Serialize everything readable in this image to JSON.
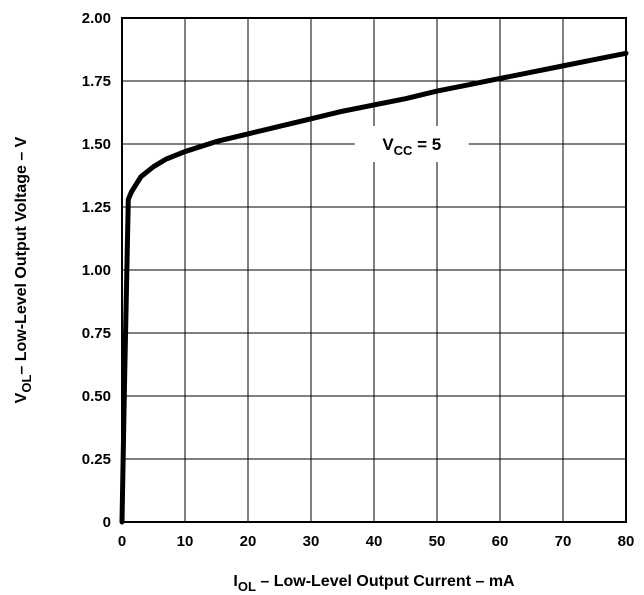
{
  "chart_data": {
    "type": "line",
    "title": "",
    "xlabel": {
      "main": "I",
      "sub": "OL",
      "rest": " – Low-Level Output Current – mA"
    },
    "ylabel": {
      "main": "V",
      "sub": "OL",
      "rest": "– Low-Level Output Voltage – V"
    },
    "xlim": [
      0,
      80
    ],
    "ylim": [
      0,
      2.0
    ],
    "x_ticks": [
      0,
      10,
      20,
      30,
      40,
      50,
      60,
      70,
      80
    ],
    "x_tick_labels": [
      "0",
      "10",
      "20",
      "30",
      "40",
      "50",
      "60",
      "70",
      "80"
    ],
    "y_ticks": [
      0,
      0.25,
      0.5,
      0.75,
      1.0,
      1.25,
      1.5,
      1.75,
      2.0
    ],
    "y_tick_labels": [
      "0",
      "0.25",
      "0.50",
      "0.75",
      "1.00",
      "1.25",
      "1.50",
      "1.75",
      "2.00"
    ],
    "grid": true,
    "series": [
      {
        "x": [
          0,
          0.4,
          1.0,
          1.5,
          2,
          3,
          4,
          5,
          7,
          10,
          15,
          20,
          25,
          30,
          35,
          40,
          45,
          50,
          55,
          60,
          65,
          70,
          75,
          80
        ],
        "y": [
          0,
          0.55,
          1.28,
          1.31,
          1.33,
          1.37,
          1.39,
          1.41,
          1.44,
          1.47,
          1.51,
          1.54,
          1.57,
          1.6,
          1.63,
          1.655,
          1.68,
          1.71,
          1.735,
          1.76,
          1.785,
          1.81,
          1.835,
          1.86
        ]
      }
    ],
    "annotation": {
      "main": "V",
      "sub": "CC",
      "rest": " = 5",
      "x": 46,
      "y": 1.5
    }
  }
}
